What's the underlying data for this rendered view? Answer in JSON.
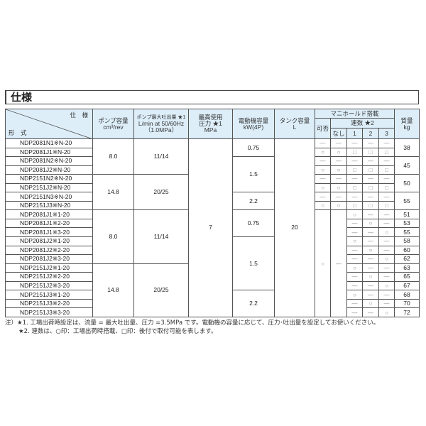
{
  "title": "仕様",
  "header": {
    "spec_label": "仕　様",
    "model_label": "形　式",
    "pump_capacity": [
      "ポンプ容量",
      "cm³/rev"
    ],
    "max_flow": [
      "ポンプ最大吐出量 ★1",
      "L/min at 50/60Hz",
      "（1.0MPa）"
    ],
    "max_pressure": [
      "最高使用",
      "圧力 ★1",
      "MPa"
    ],
    "motor": [
      "電動機容量",
      "kW(4P)"
    ],
    "tank": [
      "タンク容量",
      "L"
    ],
    "manifold": "マニホールド搭載",
    "availability": "可否",
    "stations": "連数 ★2",
    "station_cols": [
      "なし",
      "1",
      "2",
      "3"
    ],
    "mass": [
      "質量",
      "kg"
    ]
  },
  "models": [
    "NDP2081N1※N-20",
    "NDP2081J1※N-20",
    "NDP2081N2※N-20",
    "NDP2081J2※N-20",
    "NDP2151N2※N-20",
    "NDP2151J2※N-20",
    "NDP2151N3※N-20",
    "NDP2151J3※N-20",
    "NDP2081J1※1-20",
    "NDP2081J1※2-20",
    "NDP2081J1※3-20",
    "NDP2081J2※1-20",
    "NDP2081J2※2-20",
    "NDP2081J2※3-20",
    "NDP2151J2※1-20",
    "NDP2151J2※2-20",
    "NDP2151J2※3-20",
    "NDP2151J3※1-20",
    "NDP2151J3※2-20",
    "NDP2151J3※3-20"
  ],
  "pump_groups": [
    {
      "value": "8.0",
      "rows": 4
    },
    {
      "value": "14.8",
      "rows": 4
    },
    {
      "value": "8.0",
      "rows": 6
    },
    {
      "value": "14.8",
      "rows": 6
    }
  ],
  "flow_groups": [
    {
      "value": "11/14",
      "rows": 4
    },
    {
      "value": "20/25",
      "rows": 4
    },
    {
      "value": "11/14",
      "rows": 6
    },
    {
      "value": "20/25",
      "rows": 6
    }
  ],
  "pressure": "7",
  "motor_groups": [
    {
      "value": "0.75",
      "rows": 1
    },
    {
      "value": "1.5",
      "rows": 2
    },
    {
      "value": "2.2",
      "rows": 1
    },
    {
      "value": "0.75",
      "rows": 3
    },
    {
      "value": "1.5",
      "rows": 6
    },
    {
      "value": "2.2",
      "rows": 3
    }
  ],
  "tank": "20",
  "manifold_upper": [
    {
      "a": "—",
      "n": "—",
      "s1": "—",
      "s2": "—",
      "s3": "—"
    },
    {
      "a": "○",
      "n": "○",
      "s1": "□",
      "s2": "□",
      "s3": "□"
    }
  ],
  "masses_upper": [
    "38",
    "45",
    "50",
    "55"
  ],
  "lower_availability": "○",
  "lower_none": "—",
  "lower_stations": [
    [
      "○",
      "—",
      "—"
    ],
    [
      "—",
      "○",
      "—"
    ],
    [
      "—",
      "—",
      "○"
    ],
    [
      "○",
      "—",
      "—"
    ],
    [
      "—",
      "○",
      "—"
    ],
    [
      "—",
      "—",
      "○"
    ],
    [
      "○",
      "—",
      "—"
    ],
    [
      "—",
      "○",
      "—"
    ],
    [
      "—",
      "—",
      "○"
    ],
    [
      "○",
      "—",
      "—"
    ],
    [
      "—",
      "○",
      "—"
    ],
    [
      "—",
      "—",
      "○"
    ]
  ],
  "masses_lower": [
    "51",
    "53",
    "55",
    "58",
    "60",
    "62",
    "63",
    "65",
    "67",
    "68",
    "70",
    "72"
  ],
  "notes": [
    "注）★1. 工場出荷時設定は、流量 = 最大吐出量、圧力 =3.5MPa です。電動機の容量に応じて、圧力･吐出量を設定してお使いください。",
    "★2. 連数は、○印：工場出荷時搭載、□印：後付で取付可能を表します。"
  ]
}
